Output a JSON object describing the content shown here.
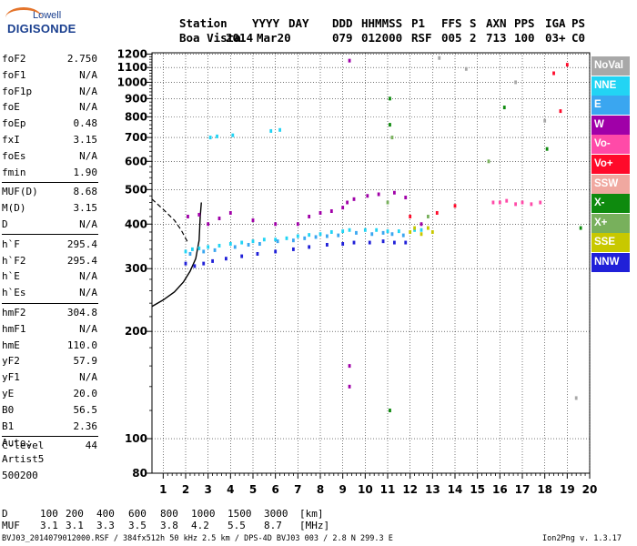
{
  "logo": {
    "line1": "Lowell",
    "line2": "DIGISONDE"
  },
  "header": {
    "labels": [
      "Station",
      "YYYY",
      "DAY",
      "DDD",
      "HHMMSS",
      "P1",
      "FFS",
      "S",
      "AXN",
      "PPS",
      "IGA",
      "PS"
    ],
    "values": [
      "Boa Vista",
      "2014",
      "Mar20",
      "079",
      "012000",
      "RSF",
      "005",
      "2",
      "713",
      "100",
      "03+",
      "C0"
    ]
  },
  "params": [
    {
      "key": "foF2",
      "value": "2.750"
    },
    {
      "key": "foF1",
      "value": "N/A"
    },
    {
      "key": "foF1p",
      "value": "N/A"
    },
    {
      "key": "foE",
      "value": "N/A"
    },
    {
      "key": "foEp",
      "value": "0.48"
    },
    {
      "key": "fxI",
      "value": "3.15"
    },
    {
      "key": "foEs",
      "value": "N/A"
    },
    {
      "key": "fmin",
      "value": "1.90"
    },
    {
      "key": "MUF(D)",
      "value": "8.68"
    },
    {
      "key": "M(D)",
      "value": "3.15"
    },
    {
      "key": "D",
      "value": "N/A"
    },
    {
      "key": "h`F",
      "value": "295.4"
    },
    {
      "key": "h`F2",
      "value": "295.4"
    },
    {
      "key": "h`E",
      "value": "N/A"
    },
    {
      "key": "h`Es",
      "value": "N/A"
    },
    {
      "key": "hmF2",
      "value": "304.8"
    },
    {
      "key": "hmF1",
      "value": "N/A"
    },
    {
      "key": "hmE",
      "value": "110.0"
    },
    {
      "key": "yF2",
      "value": "57.9"
    },
    {
      "key": "yF1",
      "value": "N/A"
    },
    {
      "key": "yE",
      "value": "20.0"
    },
    {
      "key": "B0",
      "value": "56.5"
    },
    {
      "key": "B1",
      "value": "2.36"
    },
    {
      "key": "C-level",
      "value": "44"
    }
  ],
  "autoscale": {
    "line1": "Auto:",
    "line2": "Artist5",
    "line3": "500200"
  },
  "legend": [
    {
      "name": "NoVal",
      "color": "#a8a8a8"
    },
    {
      "name": "NNE",
      "color": "#22d4f4"
    },
    {
      "name": "E",
      "color": "#3aa6f0"
    },
    {
      "name": "W",
      "color": "#a000a8"
    },
    {
      "name": "Vo-",
      "color": "#ff4aa8"
    },
    {
      "name": "Vo+",
      "color": "#ff0a2a"
    },
    {
      "name": "SSW",
      "color": "#f0a8a0"
    },
    {
      "name": "X-",
      "color": "#0e8a0e"
    },
    {
      "name": "X+",
      "color": "#78b05c"
    },
    {
      "name": "SSE",
      "color": "#c8c800"
    },
    {
      "name": "NNW",
      "color": "#2020d8"
    }
  ],
  "bottom_table": {
    "d_label": "D",
    "d_values": [
      "100",
      "200",
      "400",
      "600",
      "800",
      "1000",
      "1500",
      "3000"
    ],
    "d_unit": "[km]",
    "muf_label": "MUF",
    "muf_values": [
      "3.1",
      "3.1",
      "3.3",
      "3.5",
      "3.8",
      "4.2",
      "5.5",
      "8.7"
    ],
    "muf_unit": "[MHz]"
  },
  "footer": {
    "left": "BVJ03_2014079012000.RSF / 384fx512h 50 kHz 2.5 km / DPS-4D BVJ03 003 / 2.8 N 299.3 E",
    "right": "Ion2Png v. 1.3.17"
  },
  "chart_data": {
    "type": "scatter",
    "title": "",
    "xlabel": "",
    "ylabel": "",
    "xlim": [
      0.5,
      20
    ],
    "ylim": [
      80,
      1210
    ],
    "x_ticks": [
      1,
      2,
      3,
      4,
      5,
      6,
      7,
      8,
      9,
      10,
      11,
      12,
      13,
      14,
      15,
      16,
      17,
      18,
      19,
      20
    ],
    "y_ticks": [
      80,
      100,
      200,
      300,
      400,
      500,
      600,
      700,
      800,
      900,
      1000,
      1100,
      1200
    ],
    "x_units": "MHz",
    "y_units": "km",
    "y_scale": "log",
    "grid": true,
    "series": [
      {
        "name": "NNE",
        "color": "#22d4f4",
        "points": [
          [
            2.0,
            335
          ],
          [
            2.3,
            340
          ],
          [
            2.6,
            342
          ],
          [
            3.0,
            345
          ],
          [
            3.5,
            348
          ],
          [
            4.0,
            352
          ],
          [
            4.5,
            355
          ],
          [
            5.0,
            358
          ],
          [
            5.5,
            362
          ],
          [
            6.0,
            362
          ],
          [
            6.5,
            365
          ],
          [
            7.0,
            370
          ],
          [
            7.5,
            373
          ],
          [
            8.0,
            375
          ],
          [
            8.5,
            380
          ],
          [
            9.0,
            382
          ],
          [
            9.3,
            385
          ],
          [
            10.0,
            385
          ],
          [
            10.5,
            385
          ],
          [
            11.0,
            382
          ],
          [
            11.5,
            382
          ],
          [
            12.2,
            385
          ],
          [
            12.5,
            385
          ],
          [
            3.1,
            700
          ],
          [
            3.4,
            705
          ],
          [
            4.1,
            710
          ],
          [
            5.8,
            730
          ],
          [
            6.2,
            735
          ]
        ]
      },
      {
        "name": "E",
        "color": "#3aa6f0",
        "points": [
          [
            2.2,
            330
          ],
          [
            2.8,
            335
          ],
          [
            3.3,
            338
          ],
          [
            4.2,
            345
          ],
          [
            4.8,
            350
          ],
          [
            5.3,
            352
          ],
          [
            6.1,
            358
          ],
          [
            6.8,
            360
          ],
          [
            7.3,
            365
          ],
          [
            7.8,
            368
          ],
          [
            8.3,
            370
          ],
          [
            8.8,
            372
          ],
          [
            9.6,
            378
          ],
          [
            10.3,
            375
          ],
          [
            10.8,
            378
          ],
          [
            11.2,
            375
          ],
          [
            11.7,
            372
          ]
        ]
      },
      {
        "name": "W",
        "color": "#a000a8",
        "points": [
          [
            2.1,
            420
          ],
          [
            2.6,
            425
          ],
          [
            3.0,
            400
          ],
          [
            3.5,
            415
          ],
          [
            4.0,
            430
          ],
          [
            5.0,
            410
          ],
          [
            6.0,
            400
          ],
          [
            7.0,
            400
          ],
          [
            7.5,
            420
          ],
          [
            8.0,
            430
          ],
          [
            8.5,
            435
          ],
          [
            9.0,
            445
          ],
          [
            9.2,
            460
          ],
          [
            9.5,
            470
          ],
          [
            10.1,
            480
          ],
          [
            10.6,
            485
          ],
          [
            11.3,
            490
          ],
          [
            11.8,
            475
          ],
          [
            12.5,
            400
          ],
          [
            9.3,
            160
          ],
          [
            9.3,
            140
          ],
          [
            9.3,
            1150
          ]
        ]
      },
      {
        "name": "Vo-",
        "color": "#ff4aa8",
        "points": [
          [
            16.0,
            460
          ],
          [
            16.3,
            465
          ],
          [
            16.7,
            455
          ],
          [
            17.0,
            460
          ],
          [
            17.4,
            455
          ],
          [
            17.8,
            460
          ],
          [
            15.7,
            460
          ]
        ]
      },
      {
        "name": "Vo+",
        "color": "#ff0a2a",
        "points": [
          [
            12.0,
            420
          ],
          [
            13.2,
            430
          ],
          [
            14.0,
            450
          ],
          [
            18.4,
            1060
          ],
          [
            18.7,
            830
          ],
          [
            19.0,
            1120
          ]
        ]
      },
      {
        "name": "X-",
        "color": "#0e8a0e",
        "points": [
          [
            11.1,
            900
          ],
          [
            11.1,
            760
          ],
          [
            11.1,
            120
          ],
          [
            16.2,
            850
          ],
          [
            18.1,
            650
          ],
          [
            19.6,
            390
          ]
        ]
      },
      {
        "name": "X+",
        "color": "#78b05c",
        "points": [
          [
            11.0,
            460
          ],
          [
            11.2,
            700
          ],
          [
            12.8,
            420
          ],
          [
            15.5,
            600
          ]
        ]
      },
      {
        "name": "SSE",
        "color": "#c8c800",
        "points": [
          [
            12.0,
            380
          ],
          [
            12.2,
            390
          ],
          [
            12.5,
            375
          ],
          [
            12.8,
            390
          ],
          [
            13.0,
            380
          ]
        ]
      },
      {
        "name": "NNW",
        "color": "#2020d8",
        "points": [
          [
            2.0,
            310
          ],
          [
            2.4,
            305
          ],
          [
            2.8,
            310
          ],
          [
            3.2,
            315
          ],
          [
            3.8,
            320
          ],
          [
            4.5,
            325
          ],
          [
            5.2,
            330
          ],
          [
            6.0,
            335
          ],
          [
            6.8,
            340
          ],
          [
            7.5,
            345
          ],
          [
            8.3,
            350
          ],
          [
            9.0,
            352
          ],
          [
            9.5,
            355
          ],
          [
            10.2,
            355
          ],
          [
            10.8,
            358
          ],
          [
            11.3,
            355
          ],
          [
            11.8,
            355
          ]
        ]
      },
      {
        "name": "NoVal",
        "color": "#a8a8a8",
        "points": [
          [
            13.3,
            1170
          ],
          [
            14.5,
            1090
          ],
          [
            16.7,
            1000
          ],
          [
            18.0,
            780
          ],
          [
            19.4,
            130
          ]
        ]
      }
    ],
    "profile": {
      "points": [
        [
          0.5,
          235
        ],
        [
          1.0,
          245
        ],
        [
          1.5,
          258
        ],
        [
          1.9,
          275
        ],
        [
          2.2,
          295
        ],
        [
          2.45,
          320
        ],
        [
          2.6,
          360
        ],
        [
          2.65,
          420
        ],
        [
          2.7,
          460
        ]
      ]
    },
    "profile_dashed": {
      "points": [
        [
          0.5,
          470
        ],
        [
          1.0,
          440
        ],
        [
          1.5,
          410
        ],
        [
          1.8,
          385
        ],
        [
          2.1,
          355
        ]
      ]
    }
  }
}
